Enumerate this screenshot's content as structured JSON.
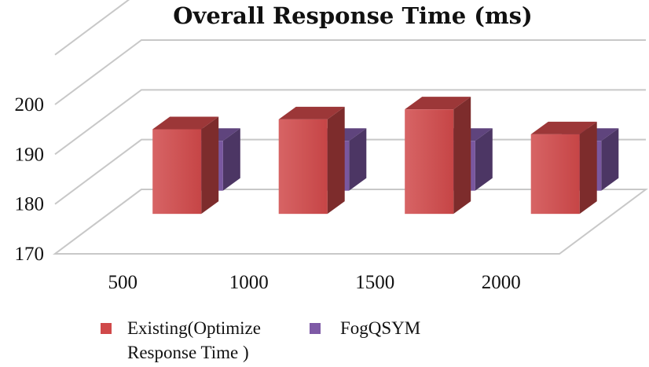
{
  "chart_data": {
    "type": "bar",
    "title": "Overall Response Time (ms)",
    "xlabel": "",
    "ylabel": "",
    "categories": [
      "500",
      "1000",
      "1500",
      "2000"
    ],
    "ylim": [
      170,
      200
    ],
    "yticks": [
      "170",
      "180",
      "190",
      "200"
    ],
    "grid": true,
    "three_d": true,
    "legend_position": "bottom",
    "series": [
      {
        "name": "Existing(Optimize Response Time )",
        "name_lines": [
          "Existing(Optimize",
          "Response Time )"
        ],
        "color": "#d0494a",
        "values": [
          187,
          189,
          191,
          186
        ]
      },
      {
        "name": "FogQSYM",
        "color": "#7e5aa6",
        "values": [
          180,
          180,
          180,
          180
        ]
      }
    ]
  }
}
